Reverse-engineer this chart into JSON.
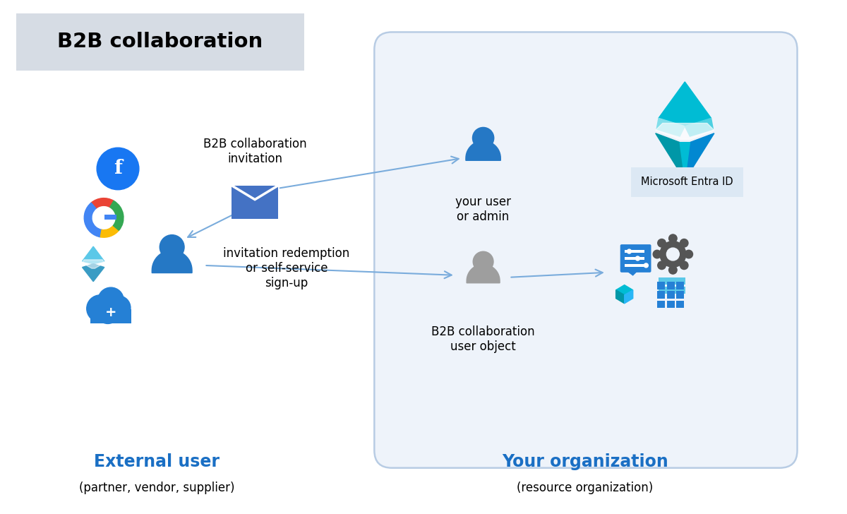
{
  "title": "B2B collaboration",
  "title_bg": "#d6dce4",
  "bg_color": "#ffffff",
  "org_box_edge": "#b8cce4",
  "org_box_fill": "#eef3fa",
  "external_label": "External user",
  "external_sub": "(partner, vendor, supplier)",
  "your_org_label": "Your organization",
  "your_org_sub": "(resource organization)",
  "label_blue": "#1a6fc4",
  "your_user_label": "your user\nor admin",
  "b2b_user_label": "B2B collaboration\nuser object",
  "b2b_invitation_label": "B2B collaboration\ninvitation",
  "redemption_label": "invitation redemption\nor self-service\nsign-up",
  "entra_label": "Microsoft Entra ID",
  "entra_box_color": "#dce8f4",
  "arrow_color": "#7aacdc",
  "blue_person": "#2578c5",
  "gray_person": "#9e9e9e",
  "envelope_color": "#4472c4",
  "fb_color": "#1877F2",
  "cloud_color": "#2580d5",
  "app_icon_color": "#2580d5",
  "gear_color": "#555555",
  "google_blue": "#4285F4",
  "google_red": "#EA4335",
  "google_yellow": "#FBBC05",
  "google_green": "#34A853"
}
